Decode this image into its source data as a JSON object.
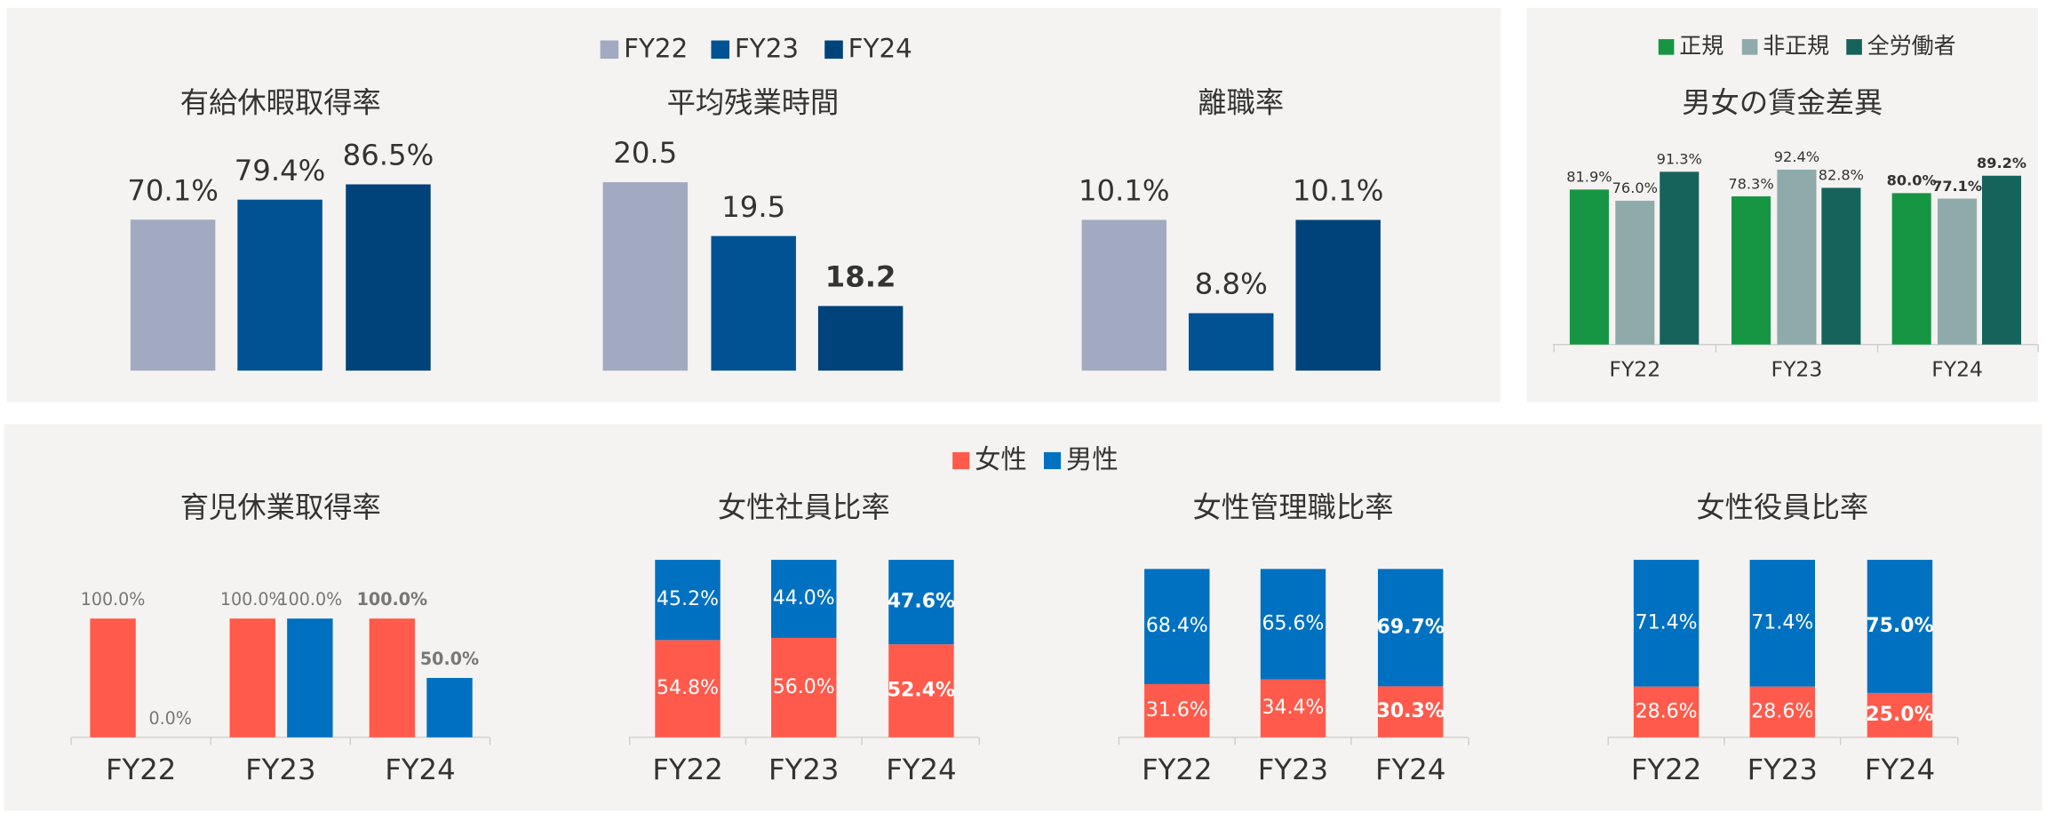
{
  "legends": [
    {
      "items": [
        {
          "name": "FY22",
          "color": "#a2aac2"
        },
        {
          "name": "FY23",
          "color": "#005293"
        },
        {
          "name": "FY24",
          "color": "#00427a"
        }
      ]
    },
    {
      "items": [
        {
          "name": "女性",
          "color": "#ff5a4b"
        },
        {
          "name": "男性",
          "color": "#0071c1"
        }
      ]
    }
  ],
  "chart_data": [
    {
      "type": "bar",
      "title": "有給休暇取得率",
      "values": [
        70.1,
        79.4,
        86.5
      ],
      "value_labels": [
        "70.1%",
        "79.4%",
        "86.5%"
      ],
      "ylim": [
        0,
        100
      ]
    },
    {
      "type": "bar",
      "title": "平均残業時間",
      "values": [
        20.5,
        19.5,
        18.2
      ],
      "ylim": [
        17,
        21
      ]
    },
    {
      "type": "bar",
      "title": "離職率",
      "values": [
        10.1,
        8.8,
        10.1
      ],
      "value_labels": [
        "10.1%",
        "8.8%",
        "10.1%"
      ],
      "ylim": [
        8,
        11
      ]
    },
    {
      "type": "bar",
      "title": "男女の賃金差異",
      "categories": [
        "FY22",
        "FY23",
        "FY24"
      ],
      "ylim": [
        0,
        100
      ],
      "series": [
        {
          "name": "正規",
          "color": "#169643",
          "values": [
            81.9,
            78.3,
            80.0
          ],
          "value_labels": [
            "81.9%",
            "78.3%",
            "80.0%"
          ]
        },
        {
          "name": "非正規",
          "color": "#8faaaa",
          "values": [
            76.0,
            92.4,
            77.1
          ],
          "value_labels": [
            "76.0%",
            "92.4%",
            "77.1%"
          ]
        },
        {
          "name": "全労働者",
          "color": "#16635c",
          "values": [
            91.3,
            82.8,
            89.2
          ],
          "value_labels": [
            "91.3%",
            "82.8%",
            "89.2%"
          ]
        }
      ]
    },
    {
      "type": "bar",
      "title": "育児休業取得率",
      "categories": [
        "FY22",
        "FY23",
        "FY24"
      ],
      "ylim": [
        0,
        100
      ],
      "series": [
        {
          "values": [
            100.0,
            100.0,
            100.0
          ],
          "value_labels": [
            "100.0%",
            "100.0%",
            "100.0%"
          ]
        },
        {
          "values": [
            0.0,
            100.0,
            50.0
          ],
          "value_labels": [
            "0.0%",
            "100.0%",
            "50.0%"
          ]
        }
      ]
    },
    {
      "type": "bar",
      "stacked": true,
      "title": "女性社員比率",
      "categories": [
        "FY22",
        "FY23",
        "FY24"
      ],
      "ylim": [
        0,
        100
      ],
      "series": [
        {
          "values": [
            54.8,
            56.0,
            52.4
          ],
          "value_labels": [
            "54.8%",
            "56.0%",
            "52.4%"
          ]
        },
        {
          "values": [
            45.2,
            44.0,
            47.6
          ],
          "value_labels": [
            "45.2%",
            "44.0%",
            "47.6%"
          ]
        }
      ]
    },
    {
      "type": "bar",
      "stacked": true,
      "title": "女性管理職比率",
      "categories": [
        "FY22",
        "FY23",
        "FY24"
      ],
      "ylim": [
        0,
        100
      ],
      "series": [
        {
          "values": [
            31.6,
            34.4,
            30.3
          ],
          "value_labels": [
            "31.6%",
            "34.4%",
            "30.3%"
          ]
        },
        {
          "values": [
            68.4,
            65.6,
            69.7
          ],
          "value_labels": [
            "68.4%",
            "65.6%",
            "69.7%"
          ]
        }
      ]
    },
    {
      "type": "bar",
      "stacked": true,
      "title": "女性役員比率",
      "categories": [
        "FY22",
        "FY23",
        "FY24"
      ],
      "ylim": [
        0,
        100
      ],
      "series": [
        {
          "values": [
            28.6,
            28.6,
            25.0
          ],
          "value_labels": [
            "28.6%",
            "28.6%",
            "25.0%"
          ]
        },
        {
          "values": [
            71.4,
            71.4,
            75.0
          ],
          "value_labels": [
            "71.4%",
            "71.4%",
            "75.0%"
          ]
        }
      ]
    }
  ]
}
